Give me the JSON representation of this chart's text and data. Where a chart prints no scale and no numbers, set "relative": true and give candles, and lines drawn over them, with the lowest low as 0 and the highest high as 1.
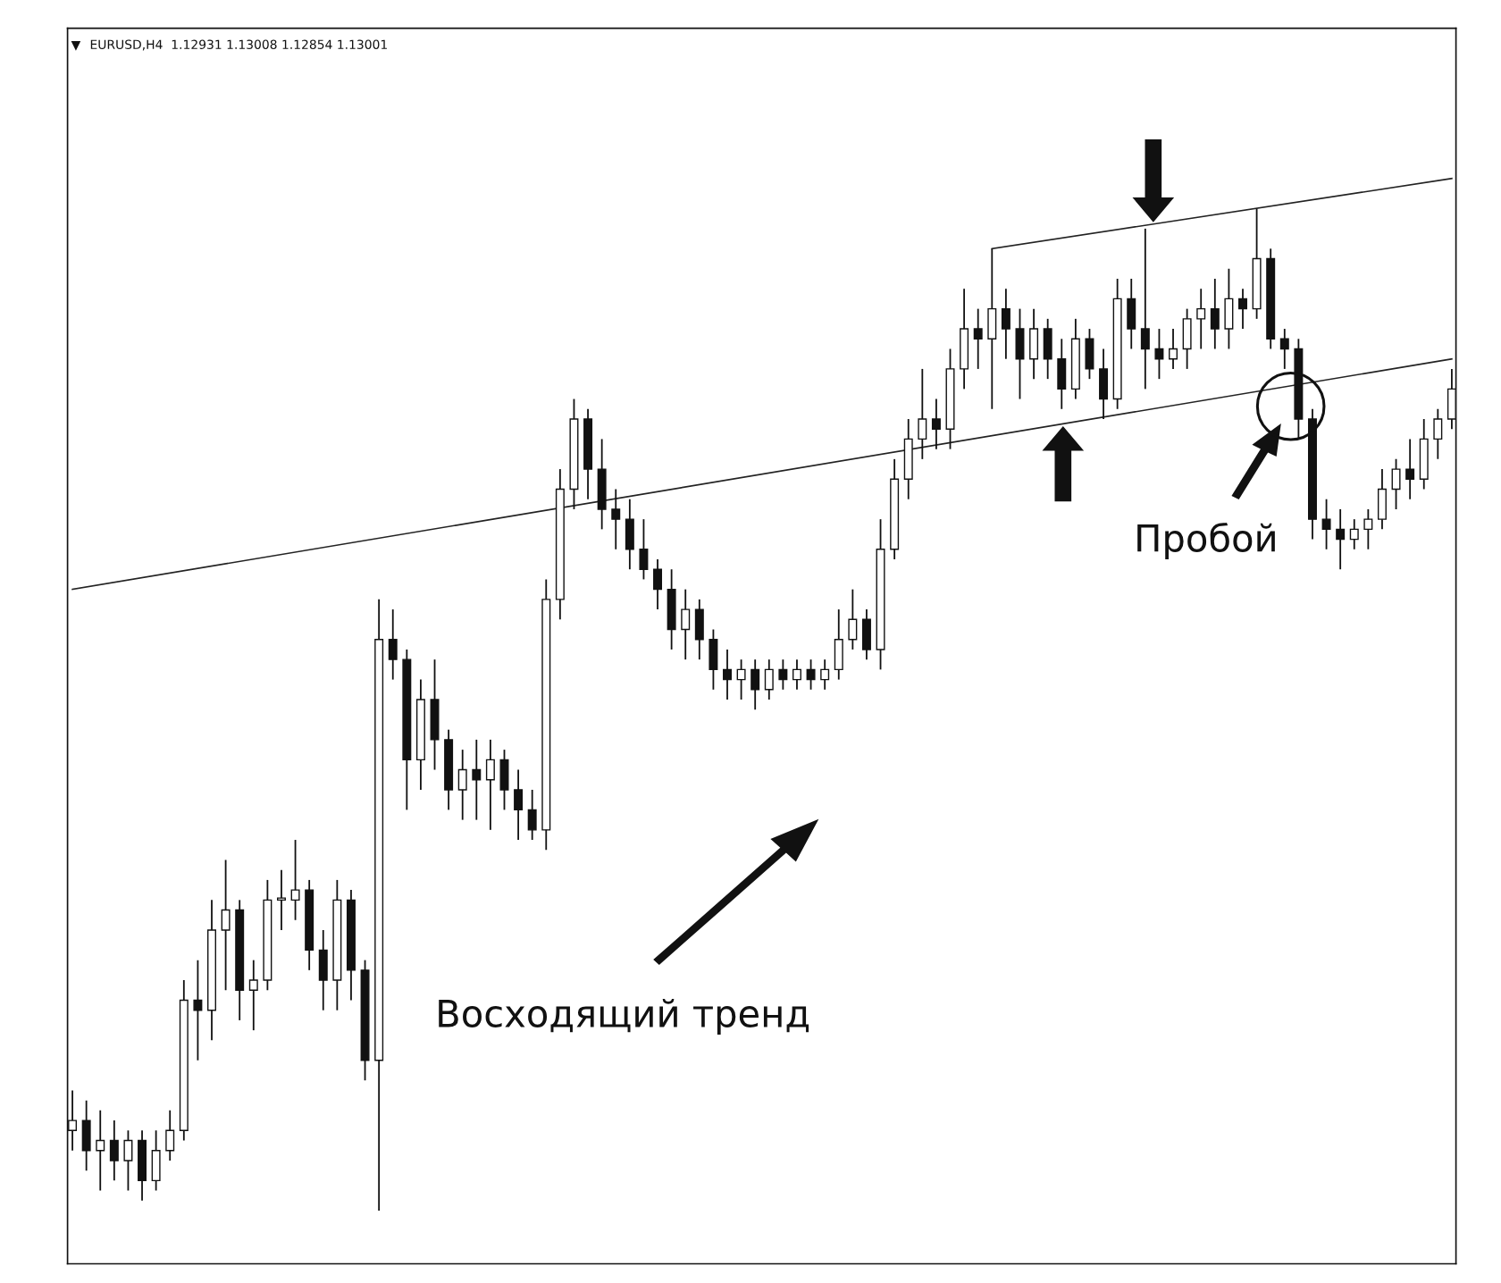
{
  "chart_data": {
    "type": "candlestick",
    "relative": true,
    "title": "EURUSD,H4  1.12931 1.13008 1.12854 1.13001",
    "grid": false,
    "categories": [
      null,
      null,
      null,
      null,
      null,
      null,
      null,
      null,
      null,
      null,
      null,
      null,
      null,
      null,
      null,
      null,
      null,
      null,
      null,
      null,
      null,
      null,
      null,
      null,
      null,
      null,
      null,
      null,
      null,
      null,
      null,
      null,
      null,
      null,
      null,
      null,
      null,
      null,
      null,
      null,
      null,
      null,
      null,
      null,
      null,
      null,
      null,
      null,
      null,
      null,
      null,
      null,
      null,
      null,
      null,
      null,
      null,
      null,
      null,
      null,
      null,
      null,
      null,
      null,
      null,
      null,
      null,
      null,
      null,
      null,
      null,
      null,
      null,
      null,
      null,
      null,
      null,
      null,
      null,
      null,
      null,
      null,
      null,
      null,
      null,
      null,
      null,
      null,
      null,
      null,
      null,
      null,
      null,
      null,
      null,
      null,
      null,
      null,
      null,
      null
    ],
    "ohlc": [
      [
        0.08,
        0.12,
        0.06,
        0.09
      ],
      [
        0.09,
        0.11,
        0.04,
        0.06
      ],
      [
        0.06,
        0.1,
        0.02,
        0.07
      ],
      [
        0.07,
        0.09,
        0.03,
        0.05
      ],
      [
        0.05,
        0.08,
        0.02,
        0.07
      ],
      [
        0.07,
        0.08,
        0.01,
        0.03
      ],
      [
        0.03,
        0.08,
        0.02,
        0.06
      ],
      [
        0.06,
        0.1,
        0.05,
        0.08
      ],
      [
        0.08,
        0.23,
        0.07,
        0.21
      ],
      [
        0.21,
        0.25,
        0.15,
        0.2
      ],
      [
        0.2,
        0.31,
        0.17,
        0.28
      ],
      [
        0.28,
        0.35,
        0.22,
        0.3
      ],
      [
        0.3,
        0.31,
        0.19,
        0.22
      ],
      [
        0.22,
        0.25,
        0.18,
        0.23
      ],
      [
        0.23,
        0.33,
        0.22,
        0.31
      ],
      [
        0.31,
        0.34,
        0.28,
        0.31
      ],
      [
        0.31,
        0.37,
        0.29,
        0.32
      ],
      [
        0.32,
        0.33,
        0.24,
        0.26
      ],
      [
        0.26,
        0.28,
        0.2,
        0.23
      ],
      [
        0.23,
        0.33,
        0.2,
        0.31
      ],
      [
        0.31,
        0.32,
        0.21,
        0.24
      ],
      [
        0.24,
        0.25,
        0.13,
        0.15
      ],
      [
        0.15,
        0.61,
        0.0,
        0.57
      ],
      [
        0.57,
        0.6,
        0.53,
        0.55
      ],
      [
        0.55,
        0.56,
        0.4,
        0.45
      ],
      [
        0.45,
        0.53,
        0.42,
        0.51
      ],
      [
        0.51,
        0.55,
        0.44,
        0.47
      ],
      [
        0.47,
        0.48,
        0.4,
        0.42
      ],
      [
        0.42,
        0.46,
        0.39,
        0.44
      ],
      [
        0.44,
        0.47,
        0.39,
        0.43
      ],
      [
        0.43,
        0.47,
        0.38,
        0.45
      ],
      [
        0.45,
        0.46,
        0.4,
        0.42
      ],
      [
        0.42,
        0.44,
        0.37,
        0.4
      ],
      [
        0.4,
        0.42,
        0.37,
        0.38
      ],
      [
        0.38,
        0.63,
        0.36,
        0.61
      ],
      [
        0.61,
        0.74,
        0.59,
        0.72
      ],
      [
        0.72,
        0.81,
        0.7,
        0.79
      ],
      [
        0.79,
        0.8,
        0.71,
        0.74
      ],
      [
        0.74,
        0.77,
        0.68,
        0.7
      ],
      [
        0.7,
        0.72,
        0.66,
        0.69
      ],
      [
        0.69,
        0.71,
        0.64,
        0.66
      ],
      [
        0.66,
        0.69,
        0.63,
        0.64
      ],
      [
        0.64,
        0.65,
        0.6,
        0.62
      ],
      [
        0.62,
        0.64,
        0.56,
        0.58
      ],
      [
        0.58,
        0.62,
        0.55,
        0.6
      ],
      [
        0.6,
        0.61,
        0.55,
        0.57
      ],
      [
        0.57,
        0.58,
        0.52,
        0.54
      ],
      [
        0.54,
        0.56,
        0.51,
        0.53
      ],
      [
        0.53,
        0.55,
        0.51,
        0.54
      ],
      [
        0.54,
        0.55,
        0.5,
        0.52
      ],
      [
        0.52,
        0.55,
        0.51,
        0.54
      ],
      [
        0.54,
        0.55,
        0.52,
        0.53
      ],
      [
        0.53,
        0.55,
        0.52,
        0.54
      ],
      [
        0.54,
        0.55,
        0.52,
        0.53
      ],
      [
        0.53,
        0.55,
        0.52,
        0.54
      ],
      [
        0.54,
        0.6,
        0.53,
        0.57
      ],
      [
        0.57,
        0.62,
        0.56,
        0.59
      ],
      [
        0.59,
        0.6,
        0.55,
        0.56
      ],
      [
        0.56,
        0.69,
        0.54,
        0.66
      ],
      [
        0.66,
        0.75,
        0.65,
        0.73
      ],
      [
        0.73,
        0.79,
        0.71,
        0.77
      ],
      [
        0.77,
        0.84,
        0.75,
        0.79
      ],
      [
        0.79,
        0.81,
        0.76,
        0.78
      ],
      [
        0.78,
        0.86,
        0.76,
        0.84
      ],
      [
        0.84,
        0.92,
        0.82,
        0.88
      ],
      [
        0.88,
        0.9,
        0.84,
        0.87
      ],
      [
        0.87,
        0.96,
        0.8,
        0.9
      ],
      [
        0.9,
        0.92,
        0.85,
        0.88
      ],
      [
        0.88,
        0.9,
        0.81,
        0.85
      ],
      [
        0.85,
        0.9,
        0.83,
        0.88
      ],
      [
        0.88,
        0.89,
        0.83,
        0.85
      ],
      [
        0.85,
        0.87,
        0.8,
        0.82
      ],
      [
        0.82,
        0.89,
        0.81,
        0.87
      ],
      [
        0.87,
        0.88,
        0.83,
        0.84
      ],
      [
        0.84,
        0.86,
        0.79,
        0.81
      ],
      [
        0.81,
        0.93,
        0.8,
        0.91
      ],
      [
        0.91,
        0.93,
        0.86,
        0.88
      ],
      [
        0.88,
        0.98,
        0.82,
        0.86
      ],
      [
        0.86,
        0.88,
        0.83,
        0.85
      ],
      [
        0.85,
        0.88,
        0.84,
        0.86
      ],
      [
        0.86,
        0.9,
        0.84,
        0.89
      ],
      [
        0.89,
        0.92,
        0.86,
        0.9
      ],
      [
        0.9,
        0.93,
        0.86,
        0.88
      ],
      [
        0.88,
        0.94,
        0.86,
        0.91
      ],
      [
        0.91,
        0.92,
        0.88,
        0.9
      ],
      [
        0.9,
        1.0,
        0.89,
        0.95
      ],
      [
        0.95,
        0.96,
        0.86,
        0.87
      ],
      [
        0.87,
        0.88,
        0.84,
        0.86
      ],
      [
        0.86,
        0.87,
        0.77,
        0.79
      ],
      [
        0.79,
        0.8,
        0.67,
        0.69
      ],
      [
        0.69,
        0.71,
        0.66,
        0.68
      ],
      [
        0.68,
        0.7,
        0.64,
        0.67
      ],
      [
        0.67,
        0.69,
        0.66,
        0.68
      ],
      [
        0.68,
        0.7,
        0.66,
        0.69
      ],
      [
        0.69,
        0.74,
        0.68,
        0.72
      ],
      [
        0.72,
        0.75,
        0.7,
        0.74
      ],
      [
        0.74,
        0.77,
        0.71,
        0.73
      ],
      [
        0.73,
        0.79,
        0.72,
        0.77
      ],
      [
        0.77,
        0.8,
        0.75,
        0.79
      ],
      [
        0.79,
        0.84,
        0.78,
        0.82
      ]
    ],
    "series": [
      {
        "type": "line",
        "color": "#222222",
        "values": [
          0.62,
          null,
          null,
          null,
          null,
          null,
          null,
          null,
          null,
          null,
          null,
          null,
          null,
          null,
          null,
          null,
          null,
          null,
          null,
          null,
          null,
          null,
          null,
          null,
          null,
          null,
          null,
          null,
          null,
          null,
          null,
          null,
          null,
          null,
          null,
          null,
          null,
          null,
          null,
          null,
          null,
          null,
          null,
          null,
          null,
          null,
          null,
          null,
          null,
          null,
          null,
          null,
          null,
          null,
          null,
          null,
          null,
          null,
          null,
          null,
          null,
          null,
          null,
          null,
          null,
          null,
          null,
          null,
          null,
          null,
          null,
          null,
          null,
          null,
          null,
          null,
          null,
          null,
          null,
          null,
          null,
          null,
          null,
          null,
          null,
          null,
          null,
          null,
          null,
          null,
          null,
          null,
          null,
          null,
          null,
          null,
          null,
          null,
          null,
          0.85
        ]
      },
      {
        "type": "line",
        "color": "#222222",
        "values": [
          null,
          null,
          null,
          null,
          null,
          null,
          null,
          null,
          null,
          null,
          null,
          null,
          null,
          null,
          null,
          null,
          null,
          null,
          null,
          null,
          null,
          null,
          null,
          null,
          null,
          null,
          null,
          null,
          null,
          null,
          null,
          null,
          null,
          null,
          null,
          null,
          null,
          null,
          null,
          null,
          null,
          null,
          null,
          null,
          null,
          null,
          null,
          null,
          null,
          null,
          null,
          null,
          null,
          null,
          null,
          null,
          null,
          null,
          null,
          null,
          null,
          null,
          null,
          null,
          null,
          null,
          0.96,
          null,
          null,
          null,
          null,
          null,
          null,
          null,
          null,
          null,
          null,
          null,
          null,
          null,
          null,
          null,
          null,
          null,
          null,
          null,
          null,
          null,
          null,
          null,
          null,
          null,
          null,
          null,
          null,
          null,
          null,
          null,
          null,
          1.03
        ]
      }
    ],
    "annotations": [
      "Восходящий тренд",
      "Пробой"
    ]
  }
}
